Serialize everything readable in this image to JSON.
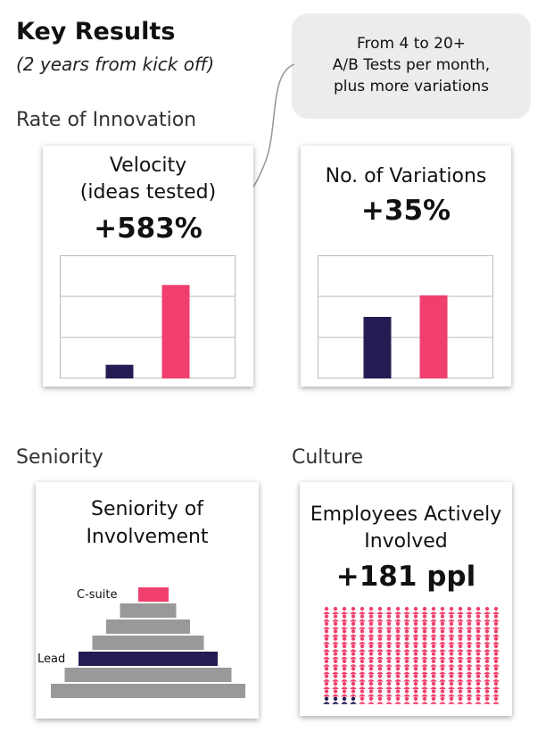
{
  "header": {
    "title": "Key Results",
    "subtitle": "(2 years from kick off)"
  },
  "callout": {
    "lines": [
      "From 4 to 20+",
      "A/B Tests per month,",
      "plus more variations"
    ]
  },
  "sections": {
    "innovation": "Rate of Innovation",
    "seniority": "Seniority",
    "culture": "Culture"
  },
  "cards": {
    "velocity": {
      "title_lines": [
        "Velocity",
        "(ideas tested)"
      ],
      "value": "+583%"
    },
    "variations": {
      "title_lines": [
        "No. of Variations"
      ],
      "value": "+35%"
    },
    "seniority": {
      "title_lines": [
        "Seniority of",
        "Involvement"
      ],
      "label_top": "C-suite",
      "label_lead": "Lead"
    },
    "culture": {
      "title_lines": [
        "Employees Actively",
        "Involved"
      ],
      "value": "+181 ppl"
    }
  },
  "colors": {
    "before": "#241c52",
    "after": "#f03f6e",
    "gray": "#999999",
    "grid": "#bbbbbb"
  },
  "chart_data": [
    {
      "type": "bar",
      "categories": [
        "before",
        "after"
      ],
      "values": [
        1,
        6.83
      ],
      "ylim": [
        0,
        9
      ],
      "grid": true
    },
    {
      "type": "bar",
      "categories": [
        "before",
        "after"
      ],
      "values": [
        1,
        1.35
      ],
      "ylim": [
        0,
        2
      ],
      "grid": true
    }
  ],
  "pyramid": {
    "levels": [
      "C-suite",
      "level 2",
      "level 3",
      "level 4",
      "Lead",
      "level 6",
      "level 7"
    ],
    "highlight": {
      "C-suite": "after",
      "Lead": "before"
    }
  },
  "people": {
    "total": 260,
    "before_count": 4
  }
}
